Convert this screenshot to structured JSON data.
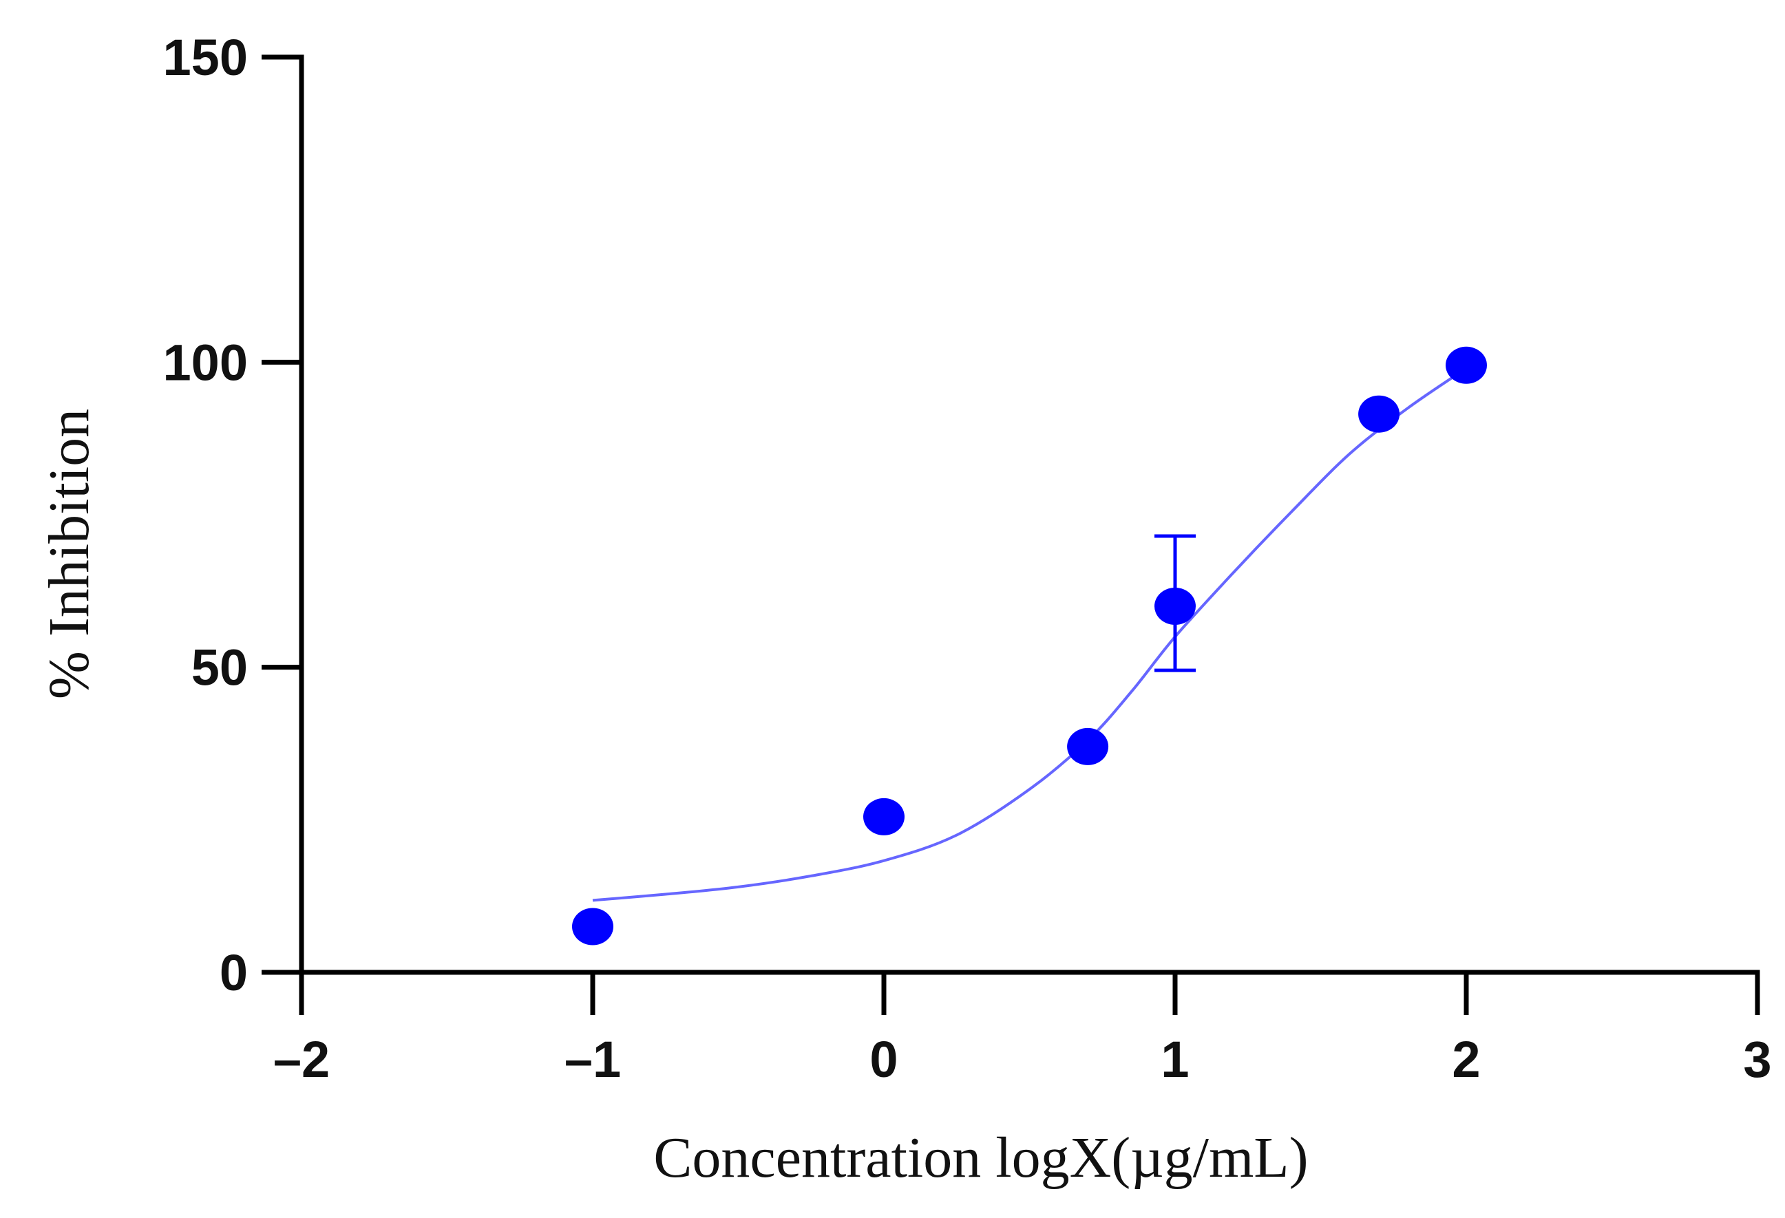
{
  "chart_data": {
    "type": "scatter",
    "title": "",
    "xlabel": "Concentration logX(µg/mL)",
    "ylabel": "% Inhibition",
    "xlim": [
      -2,
      3
    ],
    "ylim": [
      0,
      150
    ],
    "x_ticks": [
      -2,
      -1,
      0,
      1,
      2,
      3
    ],
    "x_tick_labels": [
      "–2",
      "–1",
      "0",
      "1",
      "2",
      "3"
    ],
    "y_ticks": [
      0,
      50,
      100,
      150
    ],
    "y_tick_labels": [
      "0",
      "50",
      "100",
      "150"
    ],
    "grid": false,
    "legend": "none",
    "color": "#0000ff",
    "fit_color": "#6666ff",
    "series": [
      {
        "points": [
          {
            "x": -1,
            "y": 7.5
          },
          {
            "x": 0,
            "y": 25.5
          },
          {
            "x": 0.7,
            "y": 37
          },
          {
            "x": 1.0,
            "y": 60,
            "error": [
              49.5,
              71.5
            ]
          },
          {
            "x": 1.7,
            "y": 91.5
          },
          {
            "x": 2.0,
            "y": 99.5
          }
        ],
        "fit_curve": {
          "type": "sigmoidal",
          "x_range": [
            -1,
            2
          ],
          "points": [
            [
              -1.0,
              11.8
            ],
            [
              -0.75,
              12.8
            ],
            [
              -0.5,
              14.0
            ],
            [
              -0.25,
              15.8
            ],
            [
              0.0,
              18.3
            ],
            [
              0.25,
              22.5
            ],
            [
              0.5,
              30.0
            ],
            [
              0.7,
              38.0
            ],
            [
              0.85,
              46.0
            ],
            [
              1.0,
              55.0
            ],
            [
              1.2,
              65.5
            ],
            [
              1.4,
              75.5
            ],
            [
              1.6,
              85.0
            ],
            [
              1.8,
              92.5
            ],
            [
              2.0,
              99.0
            ]
          ]
        }
      }
    ]
  }
}
